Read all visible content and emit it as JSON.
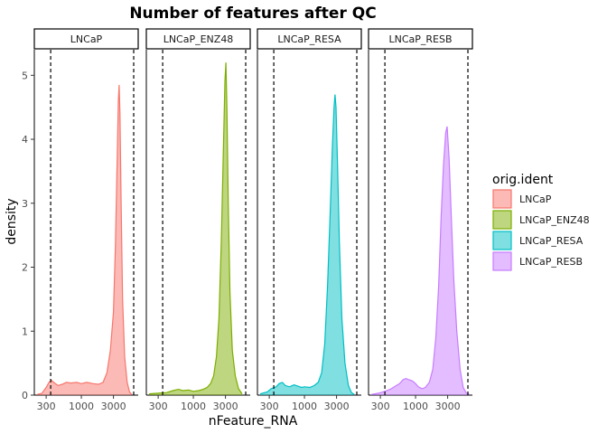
{
  "chart_data": {
    "type": "area",
    "title": "Number of features after QC",
    "xlabel": "nFeature_RNA",
    "ylabel": "density",
    "x_scale": "log10",
    "xlim": [
      200,
      7000
    ],
    "ylim": [
      0,
      5.4
    ],
    "x_ticks": [
      300,
      1000,
      3000
    ],
    "x_tick_labels": [
      "300",
      "1000",
      "3000"
    ],
    "y_ticks": [
      0,
      1,
      2,
      3,
      4,
      5
    ],
    "y_tick_labels": [
      "0",
      "1",
      "2",
      "3",
      "4",
      "5"
    ],
    "vlines": [
      350,
      6000
    ],
    "grid": false,
    "legend": {
      "title": "orig.ident",
      "placement": "right"
    },
    "facets": [
      {
        "name": "LNCaP",
        "fill": "#F8766D",
        "points": [
          [
            220,
            0.01
          ],
          [
            260,
            0.03
          ],
          [
            300,
            0.12
          ],
          [
            330,
            0.2
          ],
          [
            360,
            0.23
          ],
          [
            400,
            0.19
          ],
          [
            450,
            0.15
          ],
          [
            520,
            0.17
          ],
          [
            600,
            0.2
          ],
          [
            700,
            0.19
          ],
          [
            850,
            0.2
          ],
          [
            1000,
            0.18
          ],
          [
            1200,
            0.2
          ],
          [
            1500,
            0.18
          ],
          [
            1800,
            0.17
          ],
          [
            2100,
            0.2
          ],
          [
            2400,
            0.35
          ],
          [
            2700,
            0.7
          ],
          [
            3000,
            1.3
          ],
          [
            3200,
            2.3
          ],
          [
            3400,
            3.6
          ],
          [
            3550,
            4.6
          ],
          [
            3650,
            4.85
          ],
          [
            3750,
            4.4
          ],
          [
            3900,
            3.0
          ],
          [
            4100,
            1.5
          ],
          [
            4400,
            0.6
          ],
          [
            4800,
            0.2
          ],
          [
            5200,
            0.05
          ],
          [
            5600,
            0.01
          ]
        ]
      },
      {
        "name": "LNCaP_ENZ48",
        "fill": "#7CAE00",
        "points": [
          [
            220,
            0.02
          ],
          [
            300,
            0.03
          ],
          [
            400,
            0.04
          ],
          [
            500,
            0.07
          ],
          [
            600,
            0.09
          ],
          [
            700,
            0.07
          ],
          [
            850,
            0.08
          ],
          [
            1000,
            0.06
          ],
          [
            1200,
            0.07
          ],
          [
            1400,
            0.09
          ],
          [
            1600,
            0.12
          ],
          [
            1800,
            0.18
          ],
          [
            2000,
            0.3
          ],
          [
            2200,
            0.6
          ],
          [
            2400,
            1.2
          ],
          [
            2600,
            2.4
          ],
          [
            2800,
            3.9
          ],
          [
            2950,
            4.9
          ],
          [
            3050,
            5.2
          ],
          [
            3150,
            4.5
          ],
          [
            3300,
            3.0
          ],
          [
            3500,
            1.6
          ],
          [
            3800,
            0.7
          ],
          [
            4200,
            0.3
          ],
          [
            4700,
            0.1
          ],
          [
            5300,
            0.02
          ]
        ]
      },
      {
        "name": "LNCaP_RESA",
        "fill": "#00BFC4",
        "points": [
          [
            220,
            0.02
          ],
          [
            280,
            0.05
          ],
          [
            320,
            0.1
          ],
          [
            380,
            0.13
          ],
          [
            420,
            0.18
          ],
          [
            470,
            0.2
          ],
          [
            520,
            0.15
          ],
          [
            600,
            0.13
          ],
          [
            700,
            0.16
          ],
          [
            800,
            0.14
          ],
          [
            900,
            0.12
          ],
          [
            1000,
            0.13
          ],
          [
            1200,
            0.12
          ],
          [
            1400,
            0.15
          ],
          [
            1600,
            0.2
          ],
          [
            1800,
            0.35
          ],
          [
            2000,
            0.8
          ],
          [
            2200,
            1.7
          ],
          [
            2400,
            2.8
          ],
          [
            2600,
            3.9
          ],
          [
            2750,
            4.5
          ],
          [
            2850,
            4.7
          ],
          [
            2950,
            4.5
          ],
          [
            3100,
            3.6
          ],
          [
            3300,
            2.4
          ],
          [
            3600,
            1.2
          ],
          [
            4000,
            0.5
          ],
          [
            4500,
            0.15
          ],
          [
            5000,
            0.04
          ],
          [
            5500,
            0.01
          ]
        ]
      },
      {
        "name": "LNCaP_RESB",
        "fill": "#C77CFF",
        "points": [
          [
            220,
            0.01
          ],
          [
            280,
            0.03
          ],
          [
            350,
            0.06
          ],
          [
            420,
            0.09
          ],
          [
            500,
            0.14
          ],
          [
            580,
            0.18
          ],
          [
            650,
            0.24
          ],
          [
            720,
            0.26
          ],
          [
            800,
            0.24
          ],
          [
            900,
            0.22
          ],
          [
            1000,
            0.18
          ],
          [
            1100,
            0.13
          ],
          [
            1250,
            0.1
          ],
          [
            1400,
            0.12
          ],
          [
            1600,
            0.2
          ],
          [
            1800,
            0.4
          ],
          [
            2000,
            0.9
          ],
          [
            2200,
            1.7
          ],
          [
            2400,
            2.8
          ],
          [
            2600,
            3.6
          ],
          [
            2800,
            4.1
          ],
          [
            2950,
            4.2
          ],
          [
            3150,
            3.7
          ],
          [
            3400,
            2.8
          ],
          [
            3700,
            1.8
          ],
          [
            4100,
            1.0
          ],
          [
            4600,
            0.4
          ],
          [
            5100,
            0.12
          ],
          [
            5700,
            0.03
          ],
          [
            6300,
            0.01
          ]
        ]
      }
    ]
  }
}
